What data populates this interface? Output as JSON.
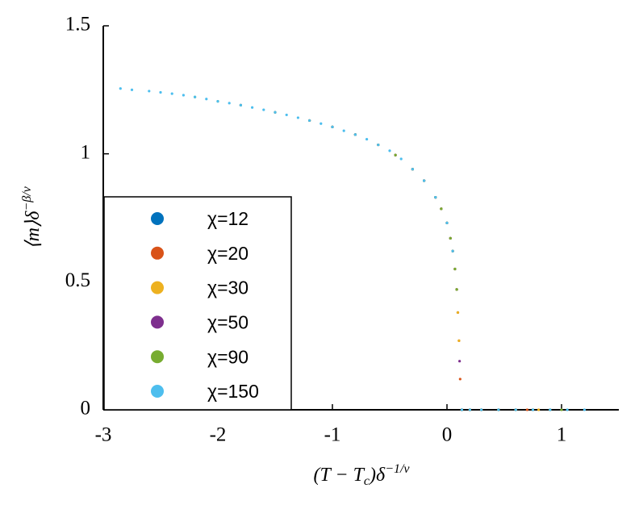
{
  "chart_data": {
    "type": "scatter",
    "x_label": {
      "main": "(T − T",
      "sub": "c",
      "after": ")δ",
      "sup": "−1/ν"
    },
    "y_label": {
      "main": "⟨m⟩δ",
      "sup": "−β/ν"
    },
    "xlim": [
      -3,
      1.5
    ],
    "ylim": [
      0,
      1.5
    ],
    "xticks": [
      -3,
      -2,
      -1,
      0,
      1
    ],
    "yticks": [
      0,
      0.5,
      1,
      1.5
    ],
    "legend": "lower left",
    "series": [
      {
        "name": "χ=12",
        "color": "#0072bd",
        "x": [
          -1.0,
          -0.8,
          -0.6,
          -0.45,
          -0.3,
          -0.2,
          -0.1,
          -0.05,
          0,
          0.03,
          0.05,
          0.07,
          0.085,
          0.095,
          0.13,
          0.2,
          0.3,
          0.45,
          0.6
        ],
        "values": [
          1.105,
          1.075,
          1.035,
          0.995,
          0.94,
          0.895,
          0.83,
          0.785,
          0.73,
          0.67,
          0.62,
          0.55,
          0.47,
          0.38,
          0,
          0,
          0,
          0,
          0
        ]
      },
      {
        "name": "χ=20",
        "color": "#d95319",
        "x": [
          -1.2,
          -1.0,
          -0.8,
          -0.6,
          -0.45,
          -0.3,
          -0.2,
          -0.1,
          -0.05,
          0,
          0.03,
          0.05,
          0.07,
          0.085,
          0.095,
          0.105,
          0.115,
          0.13,
          0.2,
          0.3,
          0.45,
          0.6,
          0.7
        ],
        "values": [
          1.13,
          1.105,
          1.075,
          1.035,
          0.995,
          0.94,
          0.895,
          0.83,
          0.785,
          0.73,
          0.67,
          0.62,
          0.55,
          0.47,
          0.38,
          0.27,
          0.12,
          0,
          0,
          0,
          0,
          0,
          0
        ]
      },
      {
        "name": "χ=30",
        "color": "#edb120",
        "x": [
          -1.5,
          -1.2,
          -1.0,
          -0.8,
          -0.6,
          -0.45,
          -0.3,
          -0.2,
          -0.1,
          -0.05,
          0,
          0.03,
          0.05,
          0.07,
          0.085,
          0.095,
          0.105,
          0.13,
          0.2,
          0.3,
          0.45,
          0.6,
          0.8
        ],
        "values": [
          1.162,
          1.13,
          1.105,
          1.075,
          1.035,
          0.995,
          0.94,
          0.895,
          0.83,
          0.785,
          0.73,
          0.67,
          0.62,
          0.55,
          0.47,
          0.38,
          0.27,
          0,
          0,
          0,
          0,
          0,
          0
        ]
      },
      {
        "name": "χ=50",
        "color": "#7e2f8e",
        "x": [
          -1.8,
          -1.5,
          -1.2,
          -1.0,
          -0.8,
          -0.6,
          -0.45,
          -0.3,
          -0.2,
          -0.1,
          -0.05,
          0,
          0.03,
          0.05,
          0.07,
          0.085,
          0.11,
          0.13,
          0.2,
          0.3,
          0.45,
          0.6,
          0.75,
          0.9
        ],
        "values": [
          1.19,
          1.162,
          1.13,
          1.105,
          1.075,
          1.035,
          0.995,
          0.94,
          0.895,
          0.83,
          0.785,
          0.73,
          0.67,
          0.62,
          0.55,
          0.47,
          0.19,
          0,
          0,
          0,
          0,
          0,
          0,
          0
        ]
      },
      {
        "name": "χ=90",
        "color": "#77ac30",
        "x": [
          -2.2,
          -2.0,
          -1.8,
          -1.5,
          -1.2,
          -1.0,
          -0.8,
          -0.6,
          -0.45,
          -0.3,
          -0.2,
          -0.1,
          -0.05,
          0,
          0.03,
          0.05,
          0.07,
          0.085,
          0.13,
          0.2,
          0.3,
          0.45,
          0.6,
          0.75,
          0.9,
          1.0
        ],
        "values": [
          1.222,
          1.205,
          1.19,
          1.162,
          1.13,
          1.105,
          1.075,
          1.035,
          0.995,
          0.94,
          0.895,
          0.83,
          0.785,
          0.73,
          0.67,
          0.62,
          0.55,
          0.47,
          0,
          0,
          0,
          0,
          0,
          0,
          0,
          0
        ]
      },
      {
        "name": "χ=150",
        "color": "#4dbeee",
        "x": [
          -2.85,
          -2.75,
          -2.6,
          -2.5,
          -2.4,
          -2.3,
          -2.2,
          -2.1,
          -2.0,
          -1.9,
          -1.8,
          -1.7,
          -1.6,
          -1.5,
          -1.4,
          -1.3,
          -1.2,
          -1.1,
          -1.0,
          -0.9,
          -0.8,
          -0.7,
          -0.6,
          -0.5,
          -0.4,
          -0.3,
          -0.2,
          -0.1,
          0,
          0.05,
          0.13,
          0.2,
          0.3,
          0.45,
          0.6,
          0.75,
          0.9,
          1.05,
          1.2
        ],
        "values": [
          1.255,
          1.25,
          1.245,
          1.24,
          1.235,
          1.229,
          1.222,
          1.214,
          1.205,
          1.198,
          1.19,
          1.181,
          1.172,
          1.162,
          1.152,
          1.141,
          1.13,
          1.118,
          1.105,
          1.09,
          1.075,
          1.057,
          1.035,
          1.012,
          0.98,
          0.94,
          0.895,
          0.83,
          0.73,
          0.62,
          0,
          0,
          0,
          0,
          0,
          0,
          0,
          0,
          0
        ]
      }
    ]
  }
}
